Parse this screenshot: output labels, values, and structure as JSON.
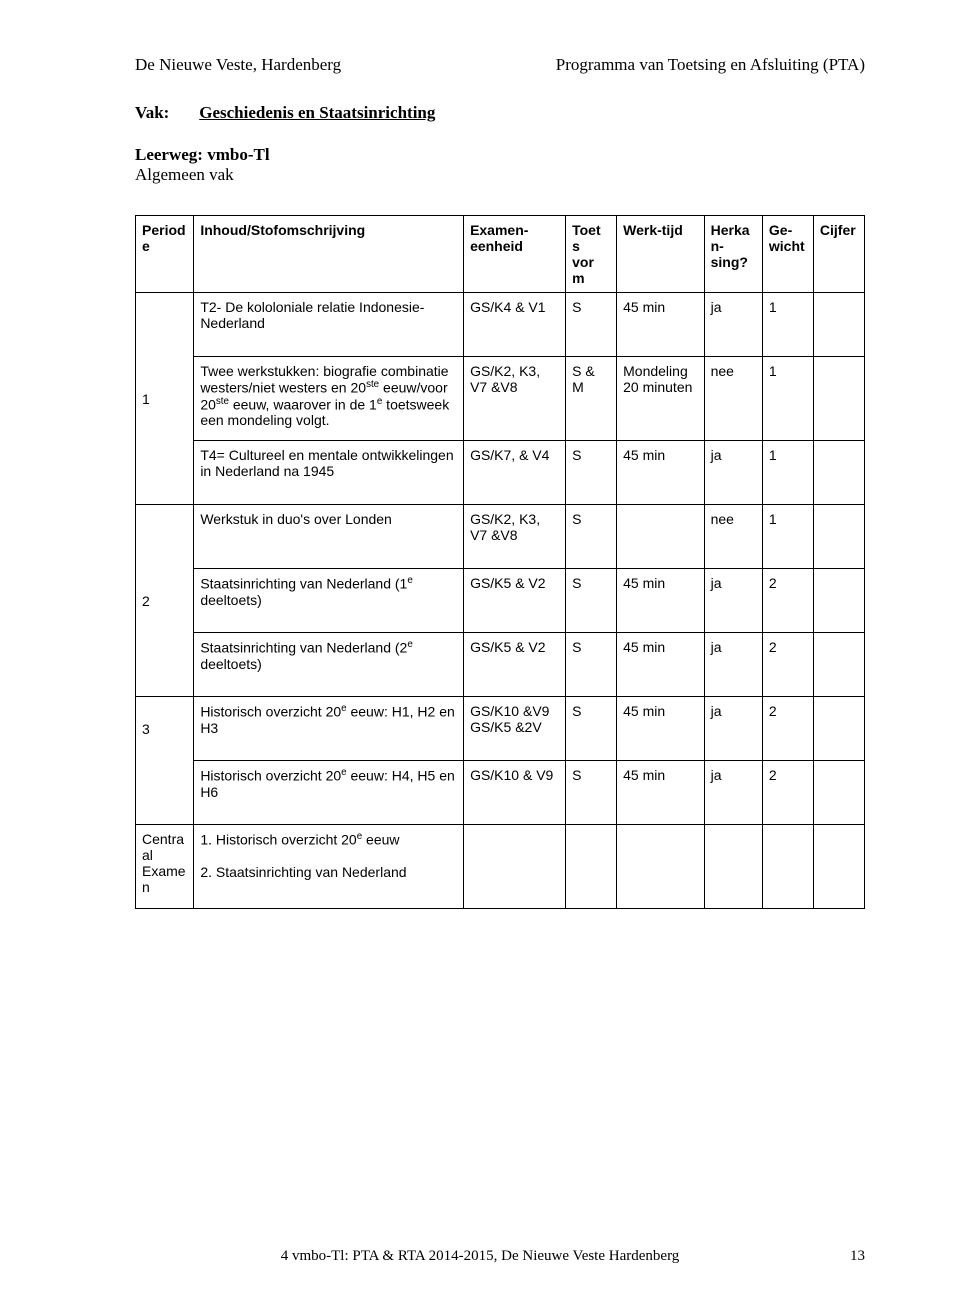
{
  "background_color": "#ffffff",
  "text_color": "#000000",
  "border_color": "#000000",
  "header_left": "De Nieuwe Veste, Hardenberg",
  "header_right": "Programma van Toetsing en Afsluiting   (PTA)",
  "vak_label": "Vak:",
  "vak_value": "Geschiedenis en Staatsinrichting",
  "leerweg_label": "Leerweg:",
  "leerweg_value": "vmbo-Tl",
  "algemeen_vak": "Algemeen vak",
  "cols": {
    "periode": "Periode",
    "inhoud": "Inhoud/Stofomschrijving",
    "exameneenheid": "Examen-eenheid",
    "toetsvorm": "Toet\ns\nvor\nm",
    "werktijd": "Werk-tijd",
    "herkansing": "Herkan-sing?",
    "gewicht": "Ge-wicht",
    "cijfer": "Cijfer"
  },
  "rows": [
    {
      "periode": "",
      "inhoud": "T2- De kololoniale relatie Indonesie- Nederland",
      "exeen": "GS/K4 & V1",
      "toets": "S",
      "werktijd": "45 min",
      "herk": "ja",
      "gew": "1",
      "cijfer": ""
    },
    {
      "periode": "1",
      "inhoud_html": "Twee werkstukken: biografie combinatie westers/niet westers en 20<sup>ste</sup> eeuw/voor 20<sup>ste</sup> eeuw, waarover in de 1<sup>e</sup> toetsweek een mondeling volgt.",
      "exeen": "GS/K2, K3, V7 &V8",
      "toets": "S & M",
      "werktijd": "Mondeling 20 minuten",
      "herk": "nee",
      "gew": "1",
      "cijfer": ""
    },
    {
      "periode": "",
      "inhoud": "T4= Cultureel en mentale ontwikkelingen in Nederland na 1945",
      "exeen": "GS/K7, & V4",
      "toets": "S",
      "werktijd": "45 min",
      "herk": "ja",
      "gew": "1",
      "cijfer": ""
    },
    {
      "periode": "",
      "inhoud": "Werkstuk in duo's over Londen",
      "exeen": "GS/K2, K3, V7 &V8",
      "toets": "S",
      "werktijd": "",
      "herk": "nee",
      "gew": "1",
      "cijfer": ""
    },
    {
      "periode": "2",
      "inhoud_html": "Staatsinrichting van Nederland (1<sup>e</sup> deeltoets)",
      "exeen": "GS/K5 & V2",
      "toets": "S",
      "werktijd": "45 min",
      "herk": "ja",
      "gew": "2",
      "cijfer": ""
    },
    {
      "periode": "",
      "inhoud_html": "Staatsinrichting van Nederland (2<sup>e</sup> deeltoets)",
      "exeen": "GS/K5 & V2",
      "toets": "S",
      "werktijd": "45 min",
      "herk": "ja",
      "gew": "2",
      "cijfer": ""
    },
    {
      "periode": "3",
      "inhoud_html": "Historisch overzicht 20<sup>e</sup> eeuw: H1, H2 en H3",
      "exeen": "GS/K10 &V9 GS/K5 &2V",
      "toets": "S",
      "werktijd": "45 min",
      "herk": "ja",
      "gew": "2",
      "cijfer": ""
    },
    {
      "periode": "",
      "inhoud_html": "Historisch overzicht 20<sup>e</sup> eeuw: H4, H5  en H6",
      "exeen": "GS/K10 & V9",
      "toets": "S",
      "werktijd": "45 min",
      "herk": "ja",
      "gew": "2",
      "cijfer": ""
    }
  ],
  "centraal_label": "Centraal Examen",
  "centraal_items_html": "1. Historisch overzicht 20<sup>e</sup> eeuw<br><br>2. Staatsinrichting van Nederland",
  "footer": "4 vmbo-Tl: PTA & RTA 2014-2015, De Nieuwe Veste Hardenberg",
  "page_number": "13"
}
